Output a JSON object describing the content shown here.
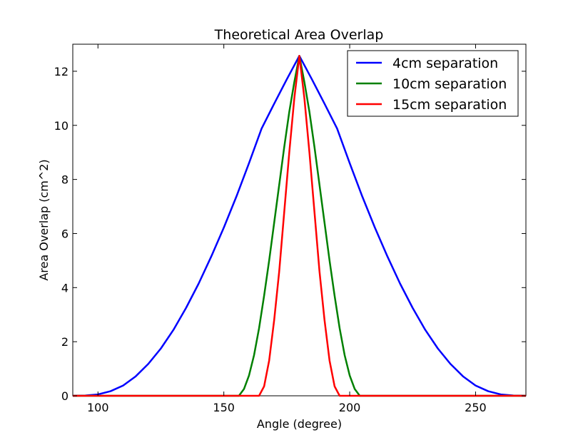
{
  "chart_data": {
    "type": "line",
    "title": "Theoretical Area Overlap",
    "xlabel": "Angle (degree)",
    "ylabel": "Area Overlap (cm^2)",
    "xlim": [
      90,
      270
    ],
    "ylim": [
      0,
      13
    ],
    "xticks": [
      100,
      150,
      200,
      250
    ],
    "yticks": [
      0,
      2,
      4,
      6,
      8,
      10,
      12
    ],
    "grid": false,
    "legend_position": "top-right",
    "series": [
      {
        "name": "4cm separation",
        "color": "#0000ff",
        "x": [
          90,
          95,
          100,
          105,
          110,
          115,
          120,
          125,
          130,
          135,
          140,
          145,
          150,
          155,
          160,
          165,
          170,
          175,
          180,
          185,
          190,
          195,
          200,
          205,
          210,
          215,
          220,
          225,
          230,
          235,
          240,
          245,
          250,
          255,
          260,
          265,
          270
        ],
        "y": [
          0.0,
          0.01,
          0.05,
          0.17,
          0.38,
          0.72,
          1.18,
          1.75,
          2.44,
          3.25,
          4.15,
          5.15,
          6.22,
          7.37,
          8.6,
          9.88,
          10.8,
          11.7,
          12.57,
          11.7,
          10.8,
          9.88,
          8.6,
          7.37,
          6.22,
          5.15,
          4.15,
          3.25,
          2.44,
          1.75,
          1.18,
          0.72,
          0.38,
          0.17,
          0.05,
          0.01,
          0.0
        ]
      },
      {
        "name": "10cm separation",
        "color": "#008000",
        "x": [
          90,
          156,
          158,
          160,
          162,
          164,
          166,
          168,
          170,
          172,
          174,
          176,
          178,
          180,
          182,
          184,
          186,
          188,
          190,
          192,
          194,
          196,
          198,
          200,
          202,
          204,
          270
        ],
        "y": [
          0.0,
          0.0,
          0.25,
          0.75,
          1.5,
          2.5,
          3.7,
          5.0,
          6.4,
          7.8,
          9.2,
          10.5,
          11.6,
          12.57,
          11.6,
          10.5,
          9.2,
          7.8,
          6.4,
          5.0,
          3.7,
          2.5,
          1.5,
          0.75,
          0.25,
          0.0,
          0.0
        ]
      },
      {
        "name": "15cm separation",
        "color": "#ff0000",
        "x": [
          90,
          164,
          166,
          168,
          170,
          172,
          174,
          176,
          178,
          180,
          182,
          184,
          186,
          188,
          190,
          192,
          194,
          196,
          270
        ],
        "y": [
          0.0,
          0.0,
          0.35,
          1.3,
          2.8,
          4.6,
          6.8,
          9.0,
          11.0,
          12.57,
          11.0,
          9.0,
          6.8,
          4.6,
          2.8,
          1.3,
          0.35,
          0.0,
          0.0
        ]
      }
    ]
  }
}
